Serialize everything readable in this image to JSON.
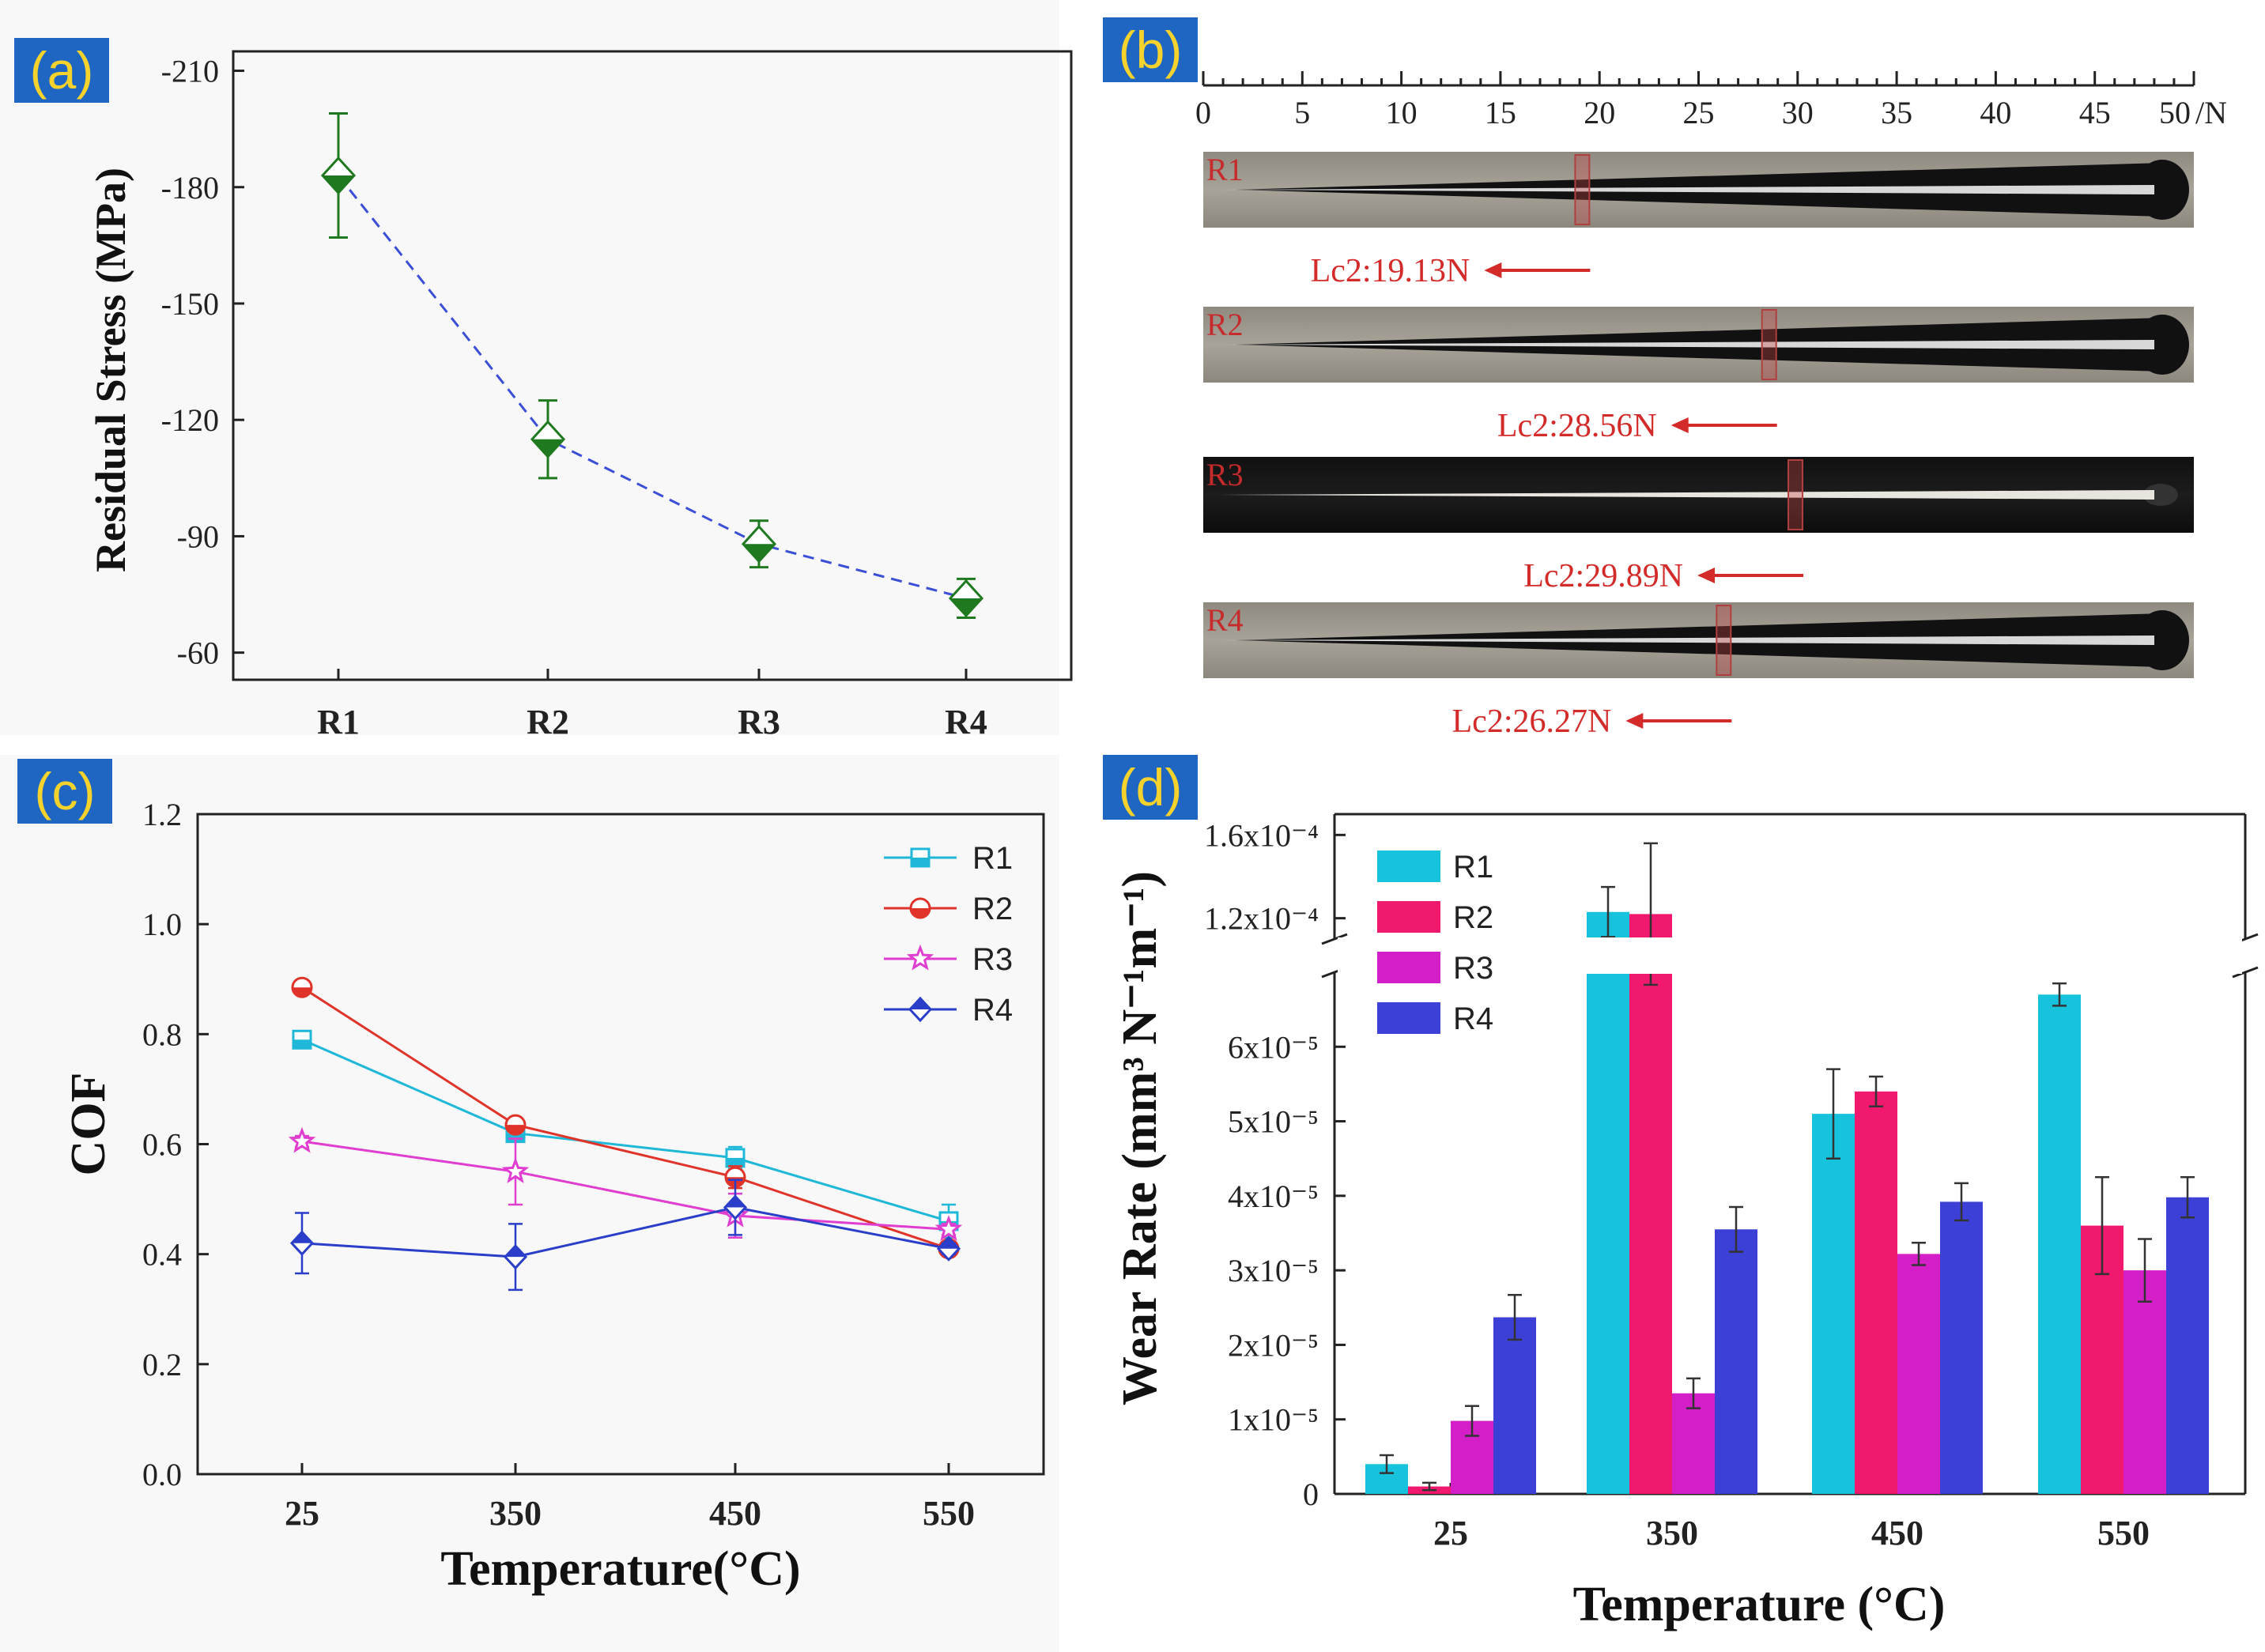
{
  "panels": {
    "a": {
      "badge": "(a)",
      "chart_data": {
        "type": "line",
        "categories": [
          "R1",
          "R2",
          "R3",
          "R4"
        ],
        "values": [
          -183,
          -115,
          -88,
          -74
        ],
        "errors": [
          16,
          10,
          6,
          5
        ],
        "ylabel": "Residual Stress (MPa)",
        "yticks": [
          "-210",
          "-180",
          "-150",
          "-120",
          "-90",
          "-60"
        ],
        "ylim": [
          -215,
          -53
        ],
        "color_line": "#3a4fd6",
        "color_marker": "#1f7a1f"
      }
    },
    "b": {
      "badge": "(b)",
      "scale_ticks": [
        "0",
        "5",
        "10",
        "15",
        "20",
        "25",
        "30",
        "35",
        "40",
        "45"
      ],
      "scale_end": "50",
      "scale_unit": "/N",
      "scale_max": 50,
      "strips": [
        {
          "label": "R1",
          "lc_text": "Lc2:19.13N",
          "lc_value": 19.13,
          "dark": false
        },
        {
          "label": "R2",
          "lc_text": "Lc2:28.56N",
          "lc_value": 28.56,
          "dark": false
        },
        {
          "label": "R3",
          "lc_text": "Lc2:29.89N",
          "lc_value": 29.89,
          "dark": true
        },
        {
          "label": "R4",
          "lc_text": "Lc2:26.27N",
          "lc_value": 26.27,
          "dark": false
        }
      ]
    },
    "c": {
      "badge": "(c)",
      "chart_data": {
        "type": "line",
        "categories": [
          "25",
          "350",
          "450",
          "550"
        ],
        "xlabel": "Temperature(°C)",
        "ylabel": "COF",
        "yticks": [
          "0.0",
          "0.2",
          "0.4",
          "0.6",
          "0.8",
          "1.0",
          "1.2"
        ],
        "ylim": [
          0,
          1.2
        ],
        "legend": "top-right",
        "series": [
          {
            "name": "R1",
            "values": [
              0.79,
              0.62,
              0.575,
              0.46
            ],
            "errors": [
              0.01,
              0.01,
              0.02,
              0.03
            ],
            "color": "#1fb8d8",
            "marker": "square"
          },
          {
            "name": "R2",
            "values": [
              0.885,
              0.635,
              0.54,
              0.41
            ],
            "errors": [
              0.01,
              0.01,
              0.02,
              0.01
            ],
            "color": "#e0342a",
            "marker": "circle"
          },
          {
            "name": "R3",
            "values": [
              0.605,
              0.55,
              0.47,
              0.445
            ],
            "errors": [
              0.01,
              0.06,
              0.04,
              0.01
            ],
            "color": "#e03ed0",
            "marker": "star"
          },
          {
            "name": "R4",
            "values": [
              0.42,
              0.395,
              0.485,
              0.41
            ],
            "errors": [
              0.055,
              0.06,
              0.05,
              0.01
            ],
            "color": "#2a3ec9",
            "marker": "diamond"
          }
        ]
      }
    },
    "d": {
      "badge": "(d)",
      "chart_data": {
        "type": "bar",
        "categories": [
          "25",
          "350",
          "450",
          "550"
        ],
        "xlabel": "Temperature (°C)",
        "ylabel": "Wear Rate (mm³ N⁻¹m⁻¹)",
        "yticks_lower": [
          "0",
          "1x10⁻⁵",
          "2x10⁻⁵",
          "3x10⁻⁵",
          "4x10⁻⁵",
          "5x10⁻⁵",
          "6x10⁻⁵"
        ],
        "yticks_upper": [
          "1.2x10⁻⁴",
          "1.6x10⁻⁴"
        ],
        "ylim_lower": [
          0,
          7e-05
        ],
        "ylim_upper": [
          0.00011,
          0.00017
        ],
        "legend": "top-left",
        "series": [
          {
            "name": "R1",
            "values": [
              4e-06,
              0.000123,
              5.1e-05,
              6.7e-05
            ],
            "errors": [
              1.2e-06,
              1.2e-05,
              6e-06,
              1.5e-06
            ],
            "color": "#16c2dc"
          },
          {
            "name": "R2",
            "values": [
              1e-06,
              0.000122,
              5.4e-05,
              3.6e-05
            ],
            "errors": [
              5e-07,
              3.4e-05,
              2e-06,
              6.5e-06
            ],
            "color": "#f0196e"
          },
          {
            "name": "R3",
            "values": [
              9.8e-06,
              1.35e-05,
              3.22e-05,
              3e-05
            ],
            "errors": [
              2e-06,
              2e-06,
              1.5e-06,
              4.2e-06
            ],
            "color": "#d41ec8"
          },
          {
            "name": "R4",
            "values": [
              2.37e-05,
              3.55e-05,
              3.92e-05,
              3.98e-05
            ],
            "errors": [
              3e-06,
              3e-06,
              2.5e-06,
              2.7e-06
            ],
            "color": "#3d40d6"
          }
        ]
      }
    }
  }
}
